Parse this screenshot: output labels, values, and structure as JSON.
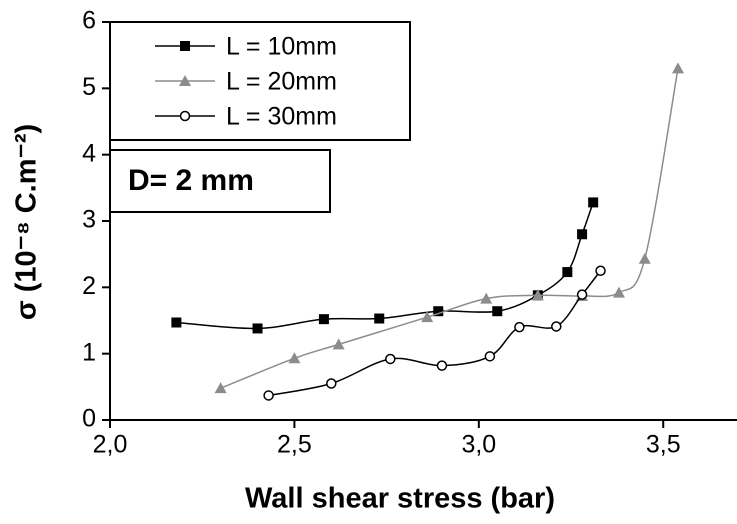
{
  "chart_data": {
    "type": "scatter",
    "xlabel": "Wall shear stress (bar)",
    "ylabel": "σ (10⁻⁸ C.m⁻²)",
    "annotation": "D= 2 mm",
    "xlim": [
      2.0,
      3.7
    ],
    "ylim": [
      0,
      6
    ],
    "xticks": [
      {
        "value": 2.0,
        "label": "2,0"
      },
      {
        "value": 2.5,
        "label": "2,5"
      },
      {
        "value": 3.0,
        "label": "3,0"
      },
      {
        "value": 3.5,
        "label": "3,5"
      }
    ],
    "yticks": [
      0,
      1,
      2,
      3,
      4,
      5,
      6
    ],
    "legend": "upper-left",
    "series": [
      {
        "name": "L = 10mm",
        "color": "#000000",
        "marker": "square",
        "x": [
          2.18,
          2.4,
          2.58,
          2.73,
          2.89,
          3.05,
          3.16,
          3.24,
          3.28,
          3.31
        ],
        "values": [
          1.47,
          1.38,
          1.52,
          1.53,
          1.64,
          1.64,
          1.88,
          2.23,
          2.8,
          3.28
        ]
      },
      {
        "name": "L = 20mm",
        "color": "#8c8c8c",
        "marker": "triangle",
        "x": [
          2.3,
          2.5,
          2.62,
          2.86,
          3.02,
          3.16,
          3.28,
          3.38,
          3.45,
          3.54
        ],
        "values": [
          0.48,
          0.93,
          1.14,
          1.55,
          1.83,
          1.88,
          1.87,
          1.92,
          2.43,
          5.3
        ]
      },
      {
        "name": "L = 30mm",
        "color": "#000000",
        "marker": "circle-open",
        "x": [
          2.43,
          2.6,
          2.76,
          2.9,
          3.03,
          3.11,
          3.21,
          3.28,
          3.33
        ],
        "values": [
          0.37,
          0.55,
          0.92,
          0.82,
          0.96,
          1.4,
          1.41,
          1.89,
          2.25
        ]
      }
    ]
  }
}
